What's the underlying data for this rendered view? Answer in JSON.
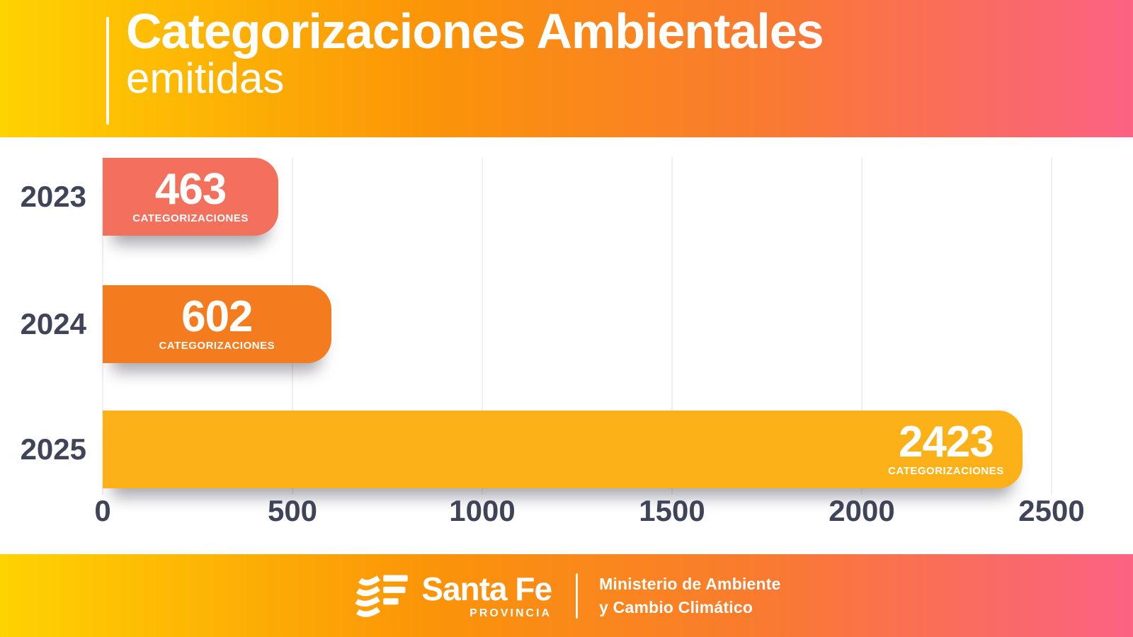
{
  "header": {
    "title": "Categorizaciones Ambientales",
    "subtitle": "emitidas"
  },
  "chart_data": {
    "type": "bar",
    "orientation": "horizontal",
    "title": "Categorizaciones Ambientales emitidas",
    "categories": [
      "2023",
      "2024",
      "2025"
    ],
    "values": [
      463,
      602,
      2423
    ],
    "unit_label": "CATEGORIZACIONES",
    "bar_colors": [
      "#F3705D",
      "#F57C1E",
      "#FBB117"
    ],
    "xlim": [
      0,
      2500
    ],
    "ticks": [
      0,
      500,
      1000,
      1500,
      2000,
      2500
    ],
    "grid": "vertical-gridlines-on",
    "legend": "none",
    "xlabel": "",
    "ylabel": ""
  },
  "footer": {
    "logo_icon": "santa-fe-flag-logo",
    "brand": "Santa Fe",
    "brand_sub": "PROVINCIA",
    "ministry_line1": "Ministerio de Ambiente",
    "ministry_line2": "y Cambio Climático"
  },
  "colors": {
    "banner_gradient": [
      "#FFD201",
      "#FB9408",
      "#F97A31",
      "#FB6283"
    ],
    "text_dark": "#3F4458",
    "gridline": "#EFEFF1",
    "bar_text": "#FFFFFF"
  }
}
